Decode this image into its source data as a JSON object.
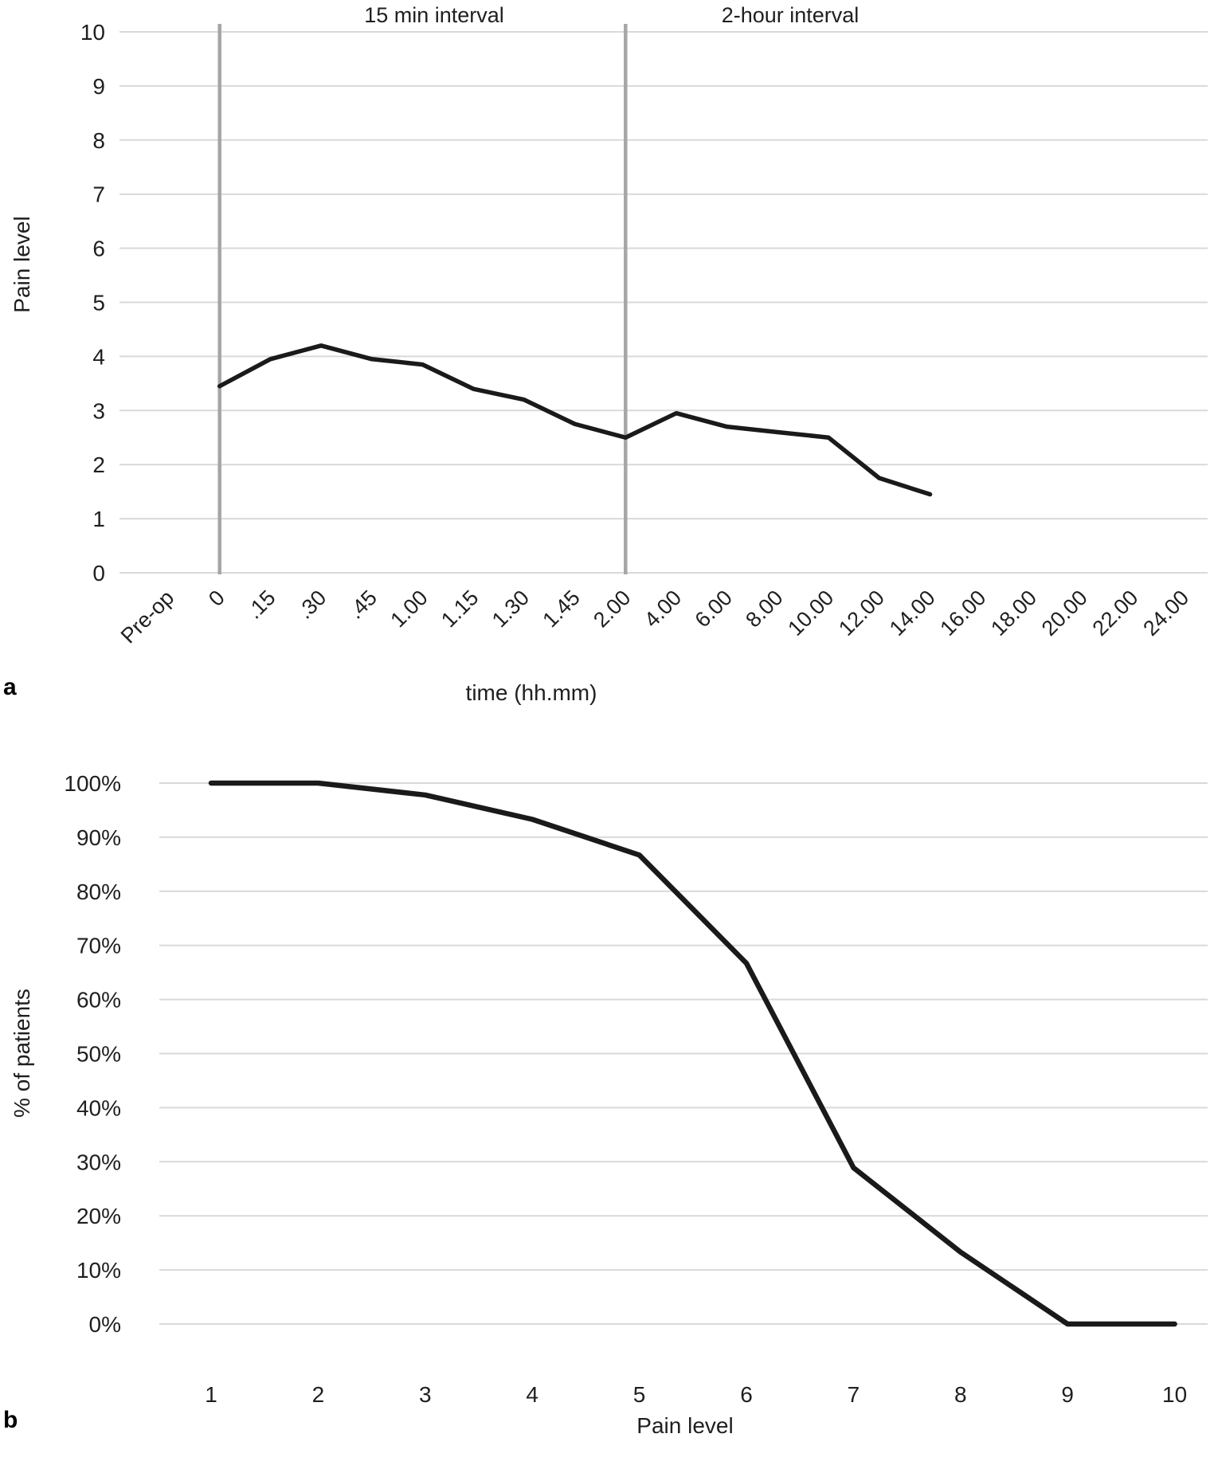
{
  "chart_data": [
    {
      "id": "a",
      "type": "line",
      "panel_label": "a",
      "region_titles": {
        "left": "15 min interval",
        "right": "2-hour interval"
      },
      "categories": [
        "Pre-op",
        "0",
        ".15",
        ".30",
        ".45",
        "1.00",
        "1.15",
        "1.30",
        "1.45",
        "2.00",
        "4.00",
        "6.00",
        "8.00",
        "10.00",
        "12.00",
        "14.00",
        "16.00",
        "18.00",
        "20.00",
        "22.00",
        "24.00"
      ],
      "values": [
        null,
        3.45,
        3.95,
        4.2,
        3.95,
        3.85,
        3.4,
        3.2,
        2.75,
        2.5,
        2.95,
        2.7,
        2.6,
        2.5,
        1.75,
        1.45,
        null,
        null,
        null,
        null,
        null
      ],
      "xlabel": "time (hh.mm)",
      "ylabel": "Pain level",
      "ylim": [
        0,
        10
      ],
      "ytick_step": 1,
      "ytick_suffix": "",
      "grid": true,
      "legend": "none",
      "divider_categories": [
        "0",
        "2.00"
      ]
    },
    {
      "id": "b",
      "type": "line",
      "panel_label": "b",
      "categories": [
        "1",
        "2",
        "3",
        "4",
        "5",
        "6",
        "7",
        "8",
        "9",
        "10"
      ],
      "values": [
        100,
        100,
        97.8,
        93.3,
        86.7,
        66.7,
        28.9,
        13.3,
        0,
        0
      ],
      "xlabel": "Pain level",
      "ylabel": "% of patients",
      "ylim": [
        0,
        100
      ],
      "ytick_step": 10,
      "ytick_suffix": "%",
      "grid": true,
      "legend": "none",
      "divider_categories": []
    }
  ],
  "colors": {
    "line": "#1a1a1a",
    "gridline": "#d9d9d9",
    "divider": "#a6a6a6",
    "text": "#1f1f1f",
    "background": "#ffffff"
  }
}
